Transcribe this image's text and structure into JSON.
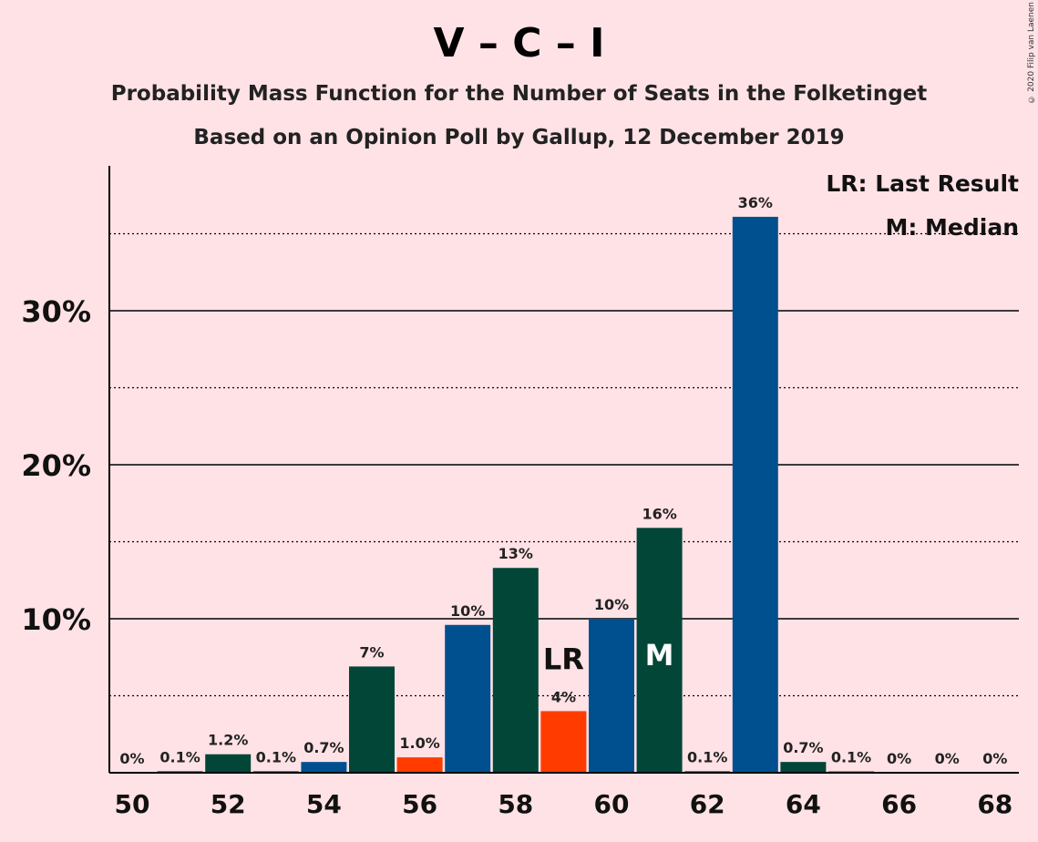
{
  "title": "V – C – I",
  "subtitle": "Probability Mass Function for the Number of Seats in the Folketinget",
  "subtitle2": "Based on an Opinion Poll by Gallup, 12 December 2019",
  "copyright": "© 2020 Filip van Laenen",
  "legend": {
    "last_result": "LR: Last Result",
    "median": "M: Median"
  },
  "colors": {
    "blue": "#00508F",
    "green": "#024638",
    "orange": "#FF3B00",
    "background": "#FFE2E6"
  },
  "chart_data": {
    "type": "bar",
    "title": "V – C – I",
    "xlabel": "",
    "ylabel": "",
    "ylim": [
      0,
      39
    ],
    "grid": true,
    "legend_position": "top-right",
    "ytick_labels": [
      "10%",
      "20%",
      "30%"
    ],
    "ytick_values": [
      10,
      20,
      30
    ],
    "xtick_labels": [
      "50",
      "52",
      "54",
      "56",
      "58",
      "60",
      "62",
      "64",
      "66",
      "68"
    ],
    "categories": [
      50,
      51,
      52,
      53,
      54,
      55,
      56,
      57,
      58,
      59,
      60,
      61,
      62,
      63,
      64,
      65,
      66,
      67,
      68
    ],
    "values": [
      0,
      0.1,
      1.2,
      0.1,
      0.7,
      6.9,
      1.0,
      9.6,
      13.3,
      4.0,
      10.0,
      15.9,
      0.1,
      36.1,
      0.7,
      0.1,
      0,
      0,
      0
    ],
    "value_labels": [
      "0%",
      "0.1%",
      "1.2%",
      "0.1%",
      "0.7%",
      "7%",
      "1.0%",
      "10%",
      "13%",
      "4%",
      "10%",
      "16%",
      "0.1%",
      "36%",
      "0.7%",
      "0.1%",
      "0%",
      "0%",
      "0%"
    ],
    "bar_colors": [
      "blue",
      "blue",
      "green",
      "blue",
      "blue",
      "green",
      "orange",
      "blue",
      "green",
      "orange",
      "blue",
      "green",
      "blue",
      "blue",
      "green",
      "orange",
      "blue",
      "blue",
      "blue"
    ],
    "last_result": {
      "seat": 59,
      "label": "LR"
    },
    "median": {
      "seat": 61,
      "label": "M"
    }
  }
}
